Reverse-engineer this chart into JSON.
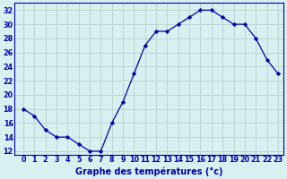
{
  "hours": [
    0,
    1,
    2,
    3,
    4,
    5,
    6,
    7,
    8,
    9,
    10,
    11,
    12,
    13,
    14,
    15,
    16,
    17,
    18,
    19,
    20,
    21,
    22,
    23
  ],
  "temps": [
    18,
    17,
    15,
    14,
    14,
    13,
    12,
    12,
    16,
    19,
    23,
    27,
    29,
    29,
    30,
    31,
    32,
    32,
    31,
    30,
    30,
    28,
    25,
    23
  ],
  "line_color": "#0000aa",
  "marker": "D",
  "marker_size": 2.2,
  "bg_color": "#d8f0f0",
  "grid_color": "#b0cccc",
  "xlabel": "Graphe des températures (°c)",
  "xlabel_fontsize": 7,
  "tick_fontsize": 5.8,
  "ylim": [
    11.5,
    33
  ],
  "yticks": [
    12,
    14,
    16,
    18,
    20,
    22,
    24,
    26,
    28,
    30,
    32
  ],
  "xticks": [
    0,
    1,
    2,
    3,
    4,
    5,
    6,
    7,
    8,
    9,
    10,
    11,
    12,
    13,
    14,
    15,
    16,
    17,
    18,
    19,
    20,
    21,
    22,
    23
  ],
  "xlim_left": -0.8,
  "xlim_right": 23.5
}
